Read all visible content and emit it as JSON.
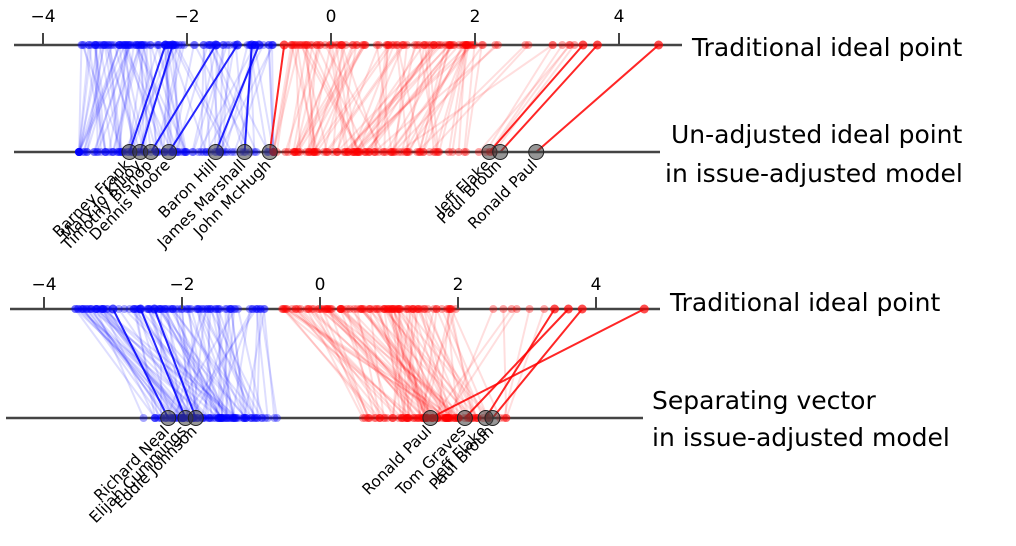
{
  "colors": {
    "democrat": "#0000ff",
    "republican": "#ff0000",
    "axis": "#444444",
    "highlight": "#404040"
  },
  "chart_data": [
    {
      "type": "scatter",
      "panel": "top",
      "axis_titles": {
        "upper": "Traditional ideal point",
        "lower_line1": "Un-adjusted ideal point",
        "lower_line2": "in issue-adjusted model"
      },
      "ticks": [
        -4,
        -2,
        0,
        2,
        4
      ],
      "tick_labels": [
        "−4",
        "−2",
        "0",
        "2",
        "4"
      ],
      "highlighted": [
        {
          "name": "Barney Frank",
          "party": "D",
          "traditional": -2.3,
          "adjusted": -2.8
        },
        {
          "name": "Mary Jo Kilroy",
          "party": "D",
          "traditional": -2.2,
          "adjusted": -2.65
        },
        {
          "name": "Timothy Bishop",
          "party": "D",
          "traditional": -1.6,
          "adjusted": -2.5
        },
        {
          "name": "Dennis Moore",
          "party": "D",
          "traditional": -1.3,
          "adjusted": -2.25
        },
        {
          "name": "Baron Hill",
          "party": "D",
          "traditional": -1.0,
          "adjusted": -1.6
        },
        {
          "name": "James Marshall",
          "party": "D",
          "traditional": -1.1,
          "adjusted": -1.2
        },
        {
          "name": "John McHugh",
          "party": "R",
          "traditional": -0.65,
          "adjusted": -0.85
        },
        {
          "name": "Jeff Flake",
          "party": "R",
          "traditional": 3.5,
          "adjusted": 2.2
        },
        {
          "name": "Paul Broun",
          "party": "R",
          "traditional": 3.7,
          "adjusted": 2.35
        },
        {
          "name": "Ronald Paul",
          "party": "R",
          "traditional": 4.55,
          "adjusted": 2.85
        }
      ]
    },
    {
      "type": "scatter",
      "panel": "bottom",
      "axis_titles": {
        "upper": "Traditional ideal point",
        "lower_line1": "Separating vector",
        "lower_line2": "in issue-adjusted model"
      },
      "ticks": [
        -4,
        -2,
        0,
        2,
        4
      ],
      "tick_labels": [
        "−4",
        "−2",
        "0",
        "2",
        "4"
      ],
      "highlighted": [
        {
          "name": "Richard Neal",
          "party": "D",
          "traditional": -3.0,
          "adjusted": -2.2
        },
        {
          "name": "Elijah Cummings",
          "party": "D",
          "traditional": -2.6,
          "adjusted": -1.95
        },
        {
          "name": "Eddie Johnson",
          "party": "D",
          "traditional": -2.4,
          "adjusted": -1.8
        },
        {
          "name": "Ronald Paul",
          "party": "R",
          "traditional": 4.7,
          "adjusted": 1.6
        },
        {
          "name": "Tom Graves",
          "party": "R",
          "traditional": 3.6,
          "adjusted": 2.1
        },
        {
          "name": "Jeff Flake",
          "party": "R",
          "traditional": 3.4,
          "adjusted": 2.4
        },
        {
          "name": "Paul Broun",
          "party": "R",
          "traditional": 3.8,
          "adjusted": 2.5
        }
      ]
    }
  ]
}
